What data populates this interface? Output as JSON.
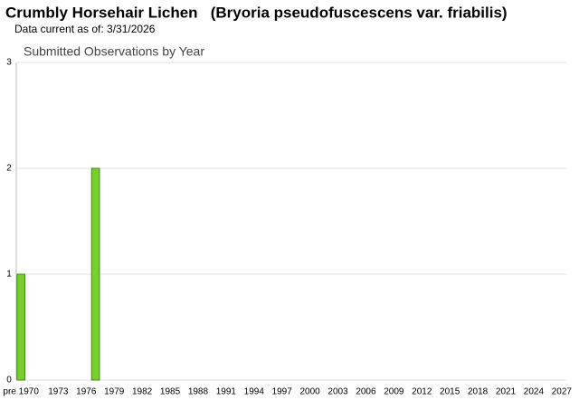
{
  "chart_data": {
    "type": "bar",
    "title": "Crumbly Horsehair Lichen   (Bryoria pseudofuscescens var. friabilis)",
    "subtitle": "Data current as of: 3/31/2026",
    "chart_title": "Submitted Observations by Year",
    "categories": [
      "pre 1970",
      null,
      null,
      null,
      "1973",
      null,
      null,
      "1976",
      null,
      null,
      "1979",
      null,
      null,
      "1982",
      null,
      null,
      "1985",
      null,
      null,
      "1988",
      null,
      null,
      "1991",
      null,
      null,
      "1994",
      null,
      null,
      "1997",
      null,
      null,
      "2000",
      null,
      null,
      "2003",
      null,
      null,
      "2006",
      null,
      null,
      "2009",
      null,
      null,
      "2012",
      null,
      null,
      "2015",
      null,
      null,
      "2018",
      null,
      null,
      "2021",
      null,
      null,
      "2024",
      null,
      null,
      "2027"
    ],
    "values": [
      1,
      0,
      0,
      0,
      0,
      0,
      0,
      0,
      2,
      0,
      0,
      0,
      0,
      0,
      0,
      0,
      0,
      0,
      0,
      0,
      0,
      0,
      0,
      0,
      0,
      0,
      0,
      0,
      0,
      0,
      0,
      0,
      0,
      0,
      0,
      0,
      0,
      0,
      0,
      0,
      0,
      0,
      0,
      0,
      0,
      0,
      0,
      0,
      0,
      0,
      0,
      0,
      0,
      0,
      0,
      0,
      0,
      0,
      0
    ],
    "color": "#77d12a",
    "ylim": [
      0,
      3
    ],
    "yticks": [
      0,
      1,
      2,
      3
    ],
    "grid": true
  }
}
